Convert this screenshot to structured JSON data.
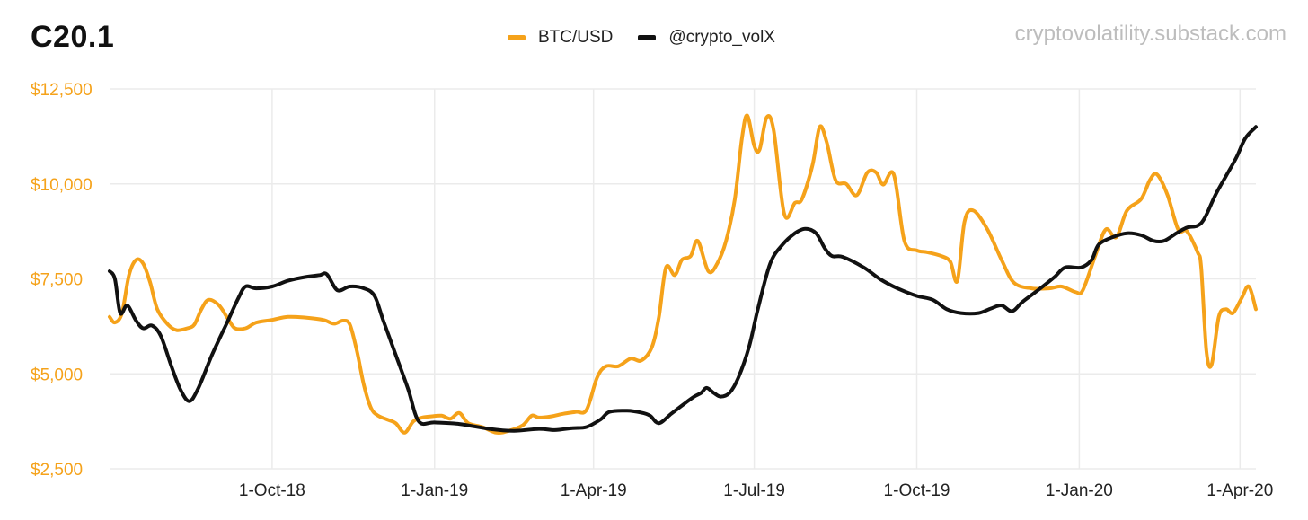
{
  "title": "C20.1",
  "watermark": "cryptovolatility.substack.com",
  "colors": {
    "btc": "#f5a21a",
    "vol": "#111111",
    "grid": "#ebebeb",
    "ytick": "#f5a21a"
  },
  "chart_data": {
    "type": "line",
    "title": "C20.1",
    "xlabel": "",
    "ylabel": "",
    "xlim": [
      "2018-07-01",
      "2020-04-10"
    ],
    "ylim": [
      2500,
      12500
    ],
    "grid": true,
    "legend_position": "top-center",
    "y_ticks": [
      2500,
      5000,
      7500,
      10000,
      12500
    ],
    "y_tick_labels": [
      "$2,500",
      "$5,000",
      "$7,500",
      "$10,000",
      "$12,500"
    ],
    "x_ticks": [
      "2018-10-01",
      "2019-01-01",
      "2019-04-01",
      "2019-07-01",
      "2019-10-01",
      "2020-01-01",
      "2020-04-01"
    ],
    "x_tick_labels": [
      "1-Oct-18",
      "1-Jan-19",
      "1-Apr-19",
      "1-Jul-19",
      "1-Oct-19",
      "1-Jan-20",
      "1-Apr-20"
    ],
    "series": [
      {
        "name": "BTC/USD",
        "color": "#f5a21a",
        "points": [
          [
            "2018-07-01",
            6500
          ],
          [
            "2018-07-04",
            6350
          ],
          [
            "2018-07-08",
            6600
          ],
          [
            "2018-07-12",
            7600
          ],
          [
            "2018-07-16",
            8000
          ],
          [
            "2018-07-20",
            7900
          ],
          [
            "2018-07-24",
            7400
          ],
          [
            "2018-07-28",
            6700
          ],
          [
            "2018-08-03",
            6300
          ],
          [
            "2018-08-08",
            6150
          ],
          [
            "2018-08-14",
            6200
          ],
          [
            "2018-08-18",
            6300
          ],
          [
            "2018-08-22",
            6700
          ],
          [
            "2018-08-26",
            6950
          ],
          [
            "2018-09-01",
            6800
          ],
          [
            "2018-09-06",
            6450
          ],
          [
            "2018-09-10",
            6200
          ],
          [
            "2018-09-16",
            6200
          ],
          [
            "2018-09-22",
            6350
          ],
          [
            "2018-10-01",
            6420
          ],
          [
            "2018-10-10",
            6500
          ],
          [
            "2018-10-20",
            6480
          ],
          [
            "2018-10-30",
            6420
          ],
          [
            "2018-11-05",
            6320
          ],
          [
            "2018-11-10",
            6400
          ],
          [
            "2018-11-14",
            6300
          ],
          [
            "2018-11-18",
            5600
          ],
          [
            "2018-11-22",
            4700
          ],
          [
            "2018-11-26",
            4100
          ],
          [
            "2018-11-30",
            3900
          ],
          [
            "2018-12-05",
            3800
          ],
          [
            "2018-12-10",
            3700
          ],
          [
            "2018-12-15",
            3450
          ],
          [
            "2018-12-20",
            3750
          ],
          [
            "2018-12-25",
            3850
          ],
          [
            "2018-12-30",
            3880
          ],
          [
            "2019-01-05",
            3900
          ],
          [
            "2019-01-10",
            3820
          ],
          [
            "2019-01-15",
            3970
          ],
          [
            "2019-01-20",
            3700
          ],
          [
            "2019-01-28",
            3600
          ],
          [
            "2019-02-05",
            3450
          ],
          [
            "2019-02-12",
            3500
          ],
          [
            "2019-02-20",
            3650
          ],
          [
            "2019-02-25",
            3900
          ],
          [
            "2019-03-01",
            3850
          ],
          [
            "2019-03-08",
            3880
          ],
          [
            "2019-03-15",
            3950
          ],
          [
            "2019-03-22",
            4000
          ],
          [
            "2019-03-28",
            4050
          ],
          [
            "2019-04-03",
            4900
          ],
          [
            "2019-04-08",
            5200
          ],
          [
            "2019-04-15",
            5200
          ],
          [
            "2019-04-22",
            5400
          ],
          [
            "2019-04-28",
            5350
          ],
          [
            "2019-05-04",
            5700
          ],
          [
            "2019-05-08",
            6500
          ],
          [
            "2019-05-12",
            7800
          ],
          [
            "2019-05-17",
            7600
          ],
          [
            "2019-05-21",
            8000
          ],
          [
            "2019-05-26",
            8100
          ],
          [
            "2019-05-30",
            8500
          ],
          [
            "2019-06-05",
            7700
          ],
          [
            "2019-06-10",
            7900
          ],
          [
            "2019-06-15",
            8500
          ],
          [
            "2019-06-20",
            9600
          ],
          [
            "2019-06-24",
            11200
          ],
          [
            "2019-06-27",
            11800
          ],
          [
            "2019-07-01",
            11000
          ],
          [
            "2019-07-04",
            10900
          ],
          [
            "2019-07-08",
            11750
          ],
          [
            "2019-07-12",
            11400
          ],
          [
            "2019-07-18",
            9200
          ],
          [
            "2019-07-24",
            9500
          ],
          [
            "2019-07-28",
            9600
          ],
          [
            "2019-08-03",
            10500
          ],
          [
            "2019-08-07",
            11500
          ],
          [
            "2019-08-11",
            11100
          ],
          [
            "2019-08-16",
            10100
          ],
          [
            "2019-08-22",
            10000
          ],
          [
            "2019-08-28",
            9700
          ],
          [
            "2019-09-03",
            10300
          ],
          [
            "2019-09-08",
            10300
          ],
          [
            "2019-09-12",
            9980
          ],
          [
            "2019-09-18",
            10250
          ],
          [
            "2019-09-24",
            8500
          ],
          [
            "2019-10-01",
            8250
          ],
          [
            "2019-10-07",
            8200
          ],
          [
            "2019-10-15",
            8100
          ],
          [
            "2019-10-20",
            7950
          ],
          [
            "2019-10-24",
            7450
          ],
          [
            "2019-10-28",
            9000
          ],
          [
            "2019-11-02",
            9300
          ],
          [
            "2019-11-10",
            8800
          ],
          [
            "2019-11-18",
            8000
          ],
          [
            "2019-11-25",
            7400
          ],
          [
            "2019-12-05",
            7250
          ],
          [
            "2019-12-15",
            7250
          ],
          [
            "2019-12-22",
            7300
          ],
          [
            "2019-12-30",
            7150
          ],
          [
            "2020-01-03",
            7200
          ],
          [
            "2020-01-10",
            8100
          ],
          [
            "2020-01-16",
            8800
          ],
          [
            "2020-01-22",
            8600
          ],
          [
            "2020-01-28",
            9300
          ],
          [
            "2020-02-05",
            9600
          ],
          [
            "2020-02-10",
            10100
          ],
          [
            "2020-02-14",
            10250
          ],
          [
            "2020-02-20",
            9700
          ],
          [
            "2020-02-26",
            8800
          ],
          [
            "2020-03-02",
            8750
          ],
          [
            "2020-03-08",
            8200
          ],
          [
            "2020-03-10",
            7800
          ],
          [
            "2020-03-13",
            5600
          ],
          [
            "2020-03-16",
            5250
          ],
          [
            "2020-03-20",
            6500
          ],
          [
            "2020-03-24",
            6700
          ],
          [
            "2020-03-28",
            6600
          ],
          [
            "2020-04-02",
            7000
          ],
          [
            "2020-04-06",
            7300
          ],
          [
            "2020-04-10",
            6700
          ]
        ]
      },
      {
        "name": "@crypto_volX",
        "color": "#111111",
        "points": [
          [
            "2018-07-01",
            7700
          ],
          [
            "2018-07-04",
            7500
          ],
          [
            "2018-07-07",
            6600
          ],
          [
            "2018-07-11",
            6800
          ],
          [
            "2018-07-16",
            6400
          ],
          [
            "2018-07-20",
            6200
          ],
          [
            "2018-07-25",
            6270
          ],
          [
            "2018-07-30",
            6000
          ],
          [
            "2018-08-05",
            5200
          ],
          [
            "2018-08-10",
            4600
          ],
          [
            "2018-08-15",
            4280
          ],
          [
            "2018-08-20",
            4600
          ],
          [
            "2018-08-28",
            5500
          ],
          [
            "2018-09-05",
            6300
          ],
          [
            "2018-09-12",
            7000
          ],
          [
            "2018-09-16",
            7300
          ],
          [
            "2018-09-22",
            7250
          ],
          [
            "2018-10-01",
            7300
          ],
          [
            "2018-10-10",
            7450
          ],
          [
            "2018-10-20",
            7550
          ],
          [
            "2018-10-28",
            7600
          ],
          [
            "2018-11-01",
            7620
          ],
          [
            "2018-11-07",
            7200
          ],
          [
            "2018-11-14",
            7300
          ],
          [
            "2018-11-22",
            7250
          ],
          [
            "2018-11-28",
            7050
          ],
          [
            "2018-12-03",
            6400
          ],
          [
            "2018-12-10",
            5500
          ],
          [
            "2018-12-17",
            4600
          ],
          [
            "2018-12-23",
            3750
          ],
          [
            "2019-01-01",
            3720
          ],
          [
            "2019-01-15",
            3680
          ],
          [
            "2019-02-01",
            3550
          ],
          [
            "2019-02-15",
            3500
          ],
          [
            "2019-03-01",
            3550
          ],
          [
            "2019-03-10",
            3520
          ],
          [
            "2019-03-20",
            3570
          ],
          [
            "2019-03-28",
            3600
          ],
          [
            "2019-04-05",
            3800
          ],
          [
            "2019-04-10",
            4000
          ],
          [
            "2019-04-20",
            4030
          ],
          [
            "2019-04-28",
            3980
          ],
          [
            "2019-05-03",
            3900
          ],
          [
            "2019-05-08",
            3700
          ],
          [
            "2019-05-15",
            3950
          ],
          [
            "2019-05-22",
            4200
          ],
          [
            "2019-05-28",
            4400
          ],
          [
            "2019-06-01",
            4500
          ],
          [
            "2019-06-04",
            4630
          ],
          [
            "2019-06-08",
            4500
          ],
          [
            "2019-06-12",
            4400
          ],
          [
            "2019-06-17",
            4500
          ],
          [
            "2019-06-22",
            4900
          ],
          [
            "2019-06-28",
            5700
          ],
          [
            "2019-07-03",
            6700
          ],
          [
            "2019-07-10",
            7900
          ],
          [
            "2019-07-17",
            8400
          ],
          [
            "2019-07-24",
            8700
          ],
          [
            "2019-07-30",
            8820
          ],
          [
            "2019-08-05",
            8700
          ],
          [
            "2019-08-10",
            8300
          ],
          [
            "2019-08-14",
            8100
          ],
          [
            "2019-08-20",
            8080
          ],
          [
            "2019-09-01",
            7800
          ],
          [
            "2019-09-10",
            7500
          ],
          [
            "2019-09-20",
            7250
          ],
          [
            "2019-10-01",
            7050
          ],
          [
            "2019-10-10",
            6950
          ],
          [
            "2019-10-18",
            6700
          ],
          [
            "2019-10-26",
            6600
          ],
          [
            "2019-11-05",
            6600
          ],
          [
            "2019-11-12",
            6720
          ],
          [
            "2019-11-18",
            6800
          ],
          [
            "2019-11-24",
            6650
          ],
          [
            "2019-11-30",
            6900
          ],
          [
            "2019-12-10",
            7250
          ],
          [
            "2019-12-18",
            7550
          ],
          [
            "2019-12-24",
            7800
          ],
          [
            "2020-01-02",
            7800
          ],
          [
            "2020-01-08",
            8000
          ],
          [
            "2020-01-12",
            8400
          ],
          [
            "2020-01-20",
            8600
          ],
          [
            "2020-01-28",
            8700
          ],
          [
            "2020-02-05",
            8650
          ],
          [
            "2020-02-12",
            8500
          ],
          [
            "2020-02-18",
            8500
          ],
          [
            "2020-02-25",
            8700
          ],
          [
            "2020-03-02",
            8850
          ],
          [
            "2020-03-08",
            8900
          ],
          [
            "2020-03-12",
            9100
          ],
          [
            "2020-03-18",
            9700
          ],
          [
            "2020-03-24",
            10200
          ],
          [
            "2020-03-30",
            10700
          ],
          [
            "2020-04-04",
            11200
          ],
          [
            "2020-04-10",
            11500
          ]
        ]
      }
    ]
  }
}
